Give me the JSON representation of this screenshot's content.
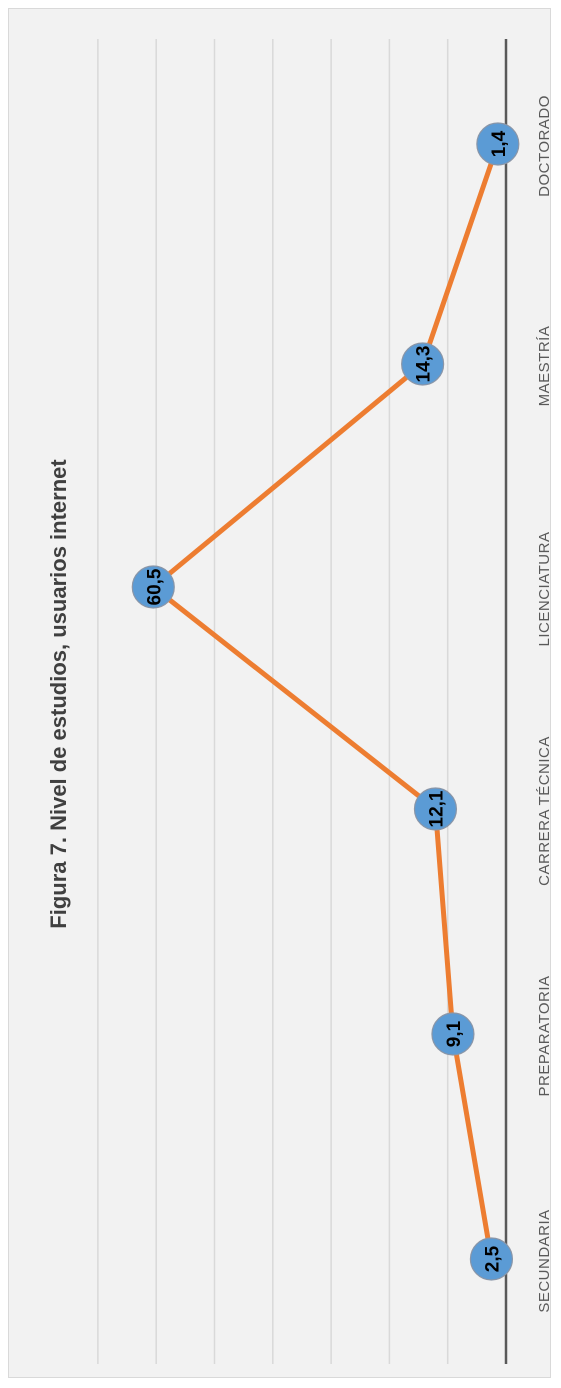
{
  "chart_data": {
    "type": "line",
    "title": "Figura 7. Nivel de estudios, usuarios internet",
    "categories": [
      "SECUNDARIA",
      "PREPARATORIA",
      "CARRERA TÉCNICA",
      "LICENCIATURA",
      "MAESTRÍA",
      "DOCTORADO"
    ],
    "series": [
      {
        "values": [
          2.5,
          9.1,
          12.1,
          60.5,
          14.3,
          1.4
        ],
        "value_labels": [
          "2,5",
          "9,1",
          "12,1",
          "60,5",
          "14,3",
          "1,4"
        ]
      }
    ],
    "ylim": [
      0,
      70
    ],
    "gridlines": true,
    "legend": "none",
    "orientation": "rotated-90-cw",
    "colors": {
      "line": "#ed7d31",
      "marker": "#5b9bd5",
      "gridline": "#d9d9d9",
      "axis": "#595959",
      "background": "#f2f2f2"
    }
  }
}
